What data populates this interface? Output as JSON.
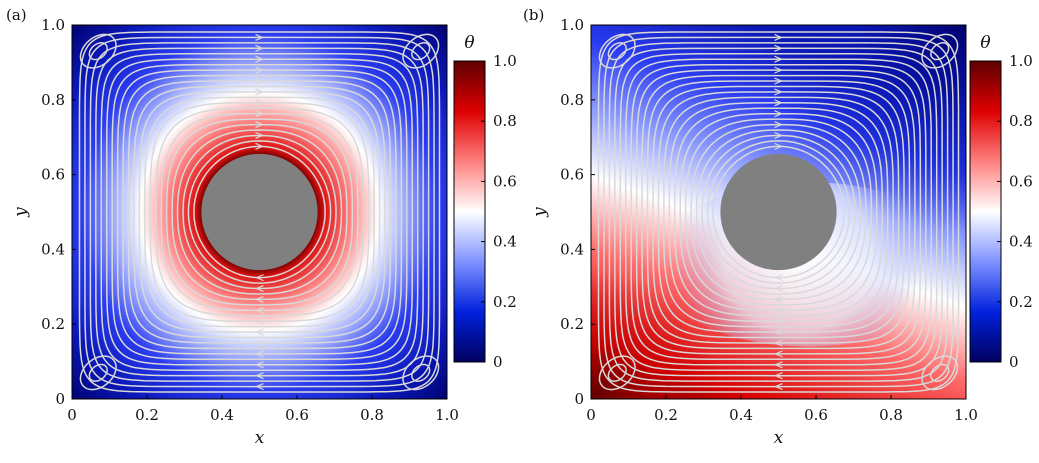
{
  "chart_data": [
    {
      "panel_label": "(a)",
      "type": "heatmap",
      "xlabel": "x",
      "ylabel": "y",
      "xlim": [
        0,
        1
      ],
      "ylim": [
        0,
        1
      ],
      "xticks": [
        "0",
        "0.2",
        "0.4",
        "0.6",
        "0.8",
        "1.0"
      ],
      "yticks": [
        "0",
        "0.2",
        "0.4",
        "0.6",
        "0.8",
        "1.0"
      ],
      "obstacle": {
        "shape": "circle",
        "cx": 0.5,
        "cy": 0.5,
        "r": 0.155,
        "color": "#808080"
      },
      "field": {
        "variable": "θ",
        "pattern": "radial-from-cylinder",
        "inner_value": 1.0,
        "outer_value": 0.0
      },
      "streamlines": {
        "pattern": "closed-loops-around-cylinder",
        "color": "#d9d9d9"
      },
      "colorbar": {
        "label": "θ",
        "ticks": [
          "0",
          "0.2",
          "0.4",
          "0.6",
          "0.8",
          "1.0"
        ],
        "range": [
          0,
          1
        ],
        "colors": [
          "#00005e",
          "#0022dd",
          "#7f92ff",
          "#ffffff",
          "#ff7f7f",
          "#dd0000",
          "#5e0000"
        ]
      }
    },
    {
      "panel_label": "(b)",
      "type": "heatmap",
      "xlabel": "x",
      "ylabel": "y",
      "xlim": [
        0,
        1
      ],
      "ylim": [
        0,
        1
      ],
      "xticks": [
        "0",
        "0.2",
        "0.4",
        "0.6",
        "0.8",
        "1.0"
      ],
      "yticks": [
        "0",
        "0.2",
        "0.4",
        "0.6",
        "0.8",
        "1.0"
      ],
      "obstacle": {
        "shape": "circle",
        "cx": 0.5,
        "cy": 0.5,
        "r": 0.155,
        "color": "#808080"
      },
      "field": {
        "variable": "θ",
        "pattern": "spiral-hot-lower-left",
        "high_value": 1.0,
        "low_value": 0.0
      },
      "streamlines": {
        "pattern": "closed-loops-around-cylinder",
        "color": "#d9d9d9"
      },
      "colorbar": {
        "label": "θ",
        "ticks": [
          "0",
          "0.2",
          "0.4",
          "0.6",
          "0.8",
          "1.0"
        ],
        "range": [
          0,
          1
        ],
        "colors": [
          "#00005e",
          "#0022dd",
          "#7f92ff",
          "#ffffff",
          "#ff7f7f",
          "#dd0000",
          "#5e0000"
        ]
      }
    }
  ]
}
